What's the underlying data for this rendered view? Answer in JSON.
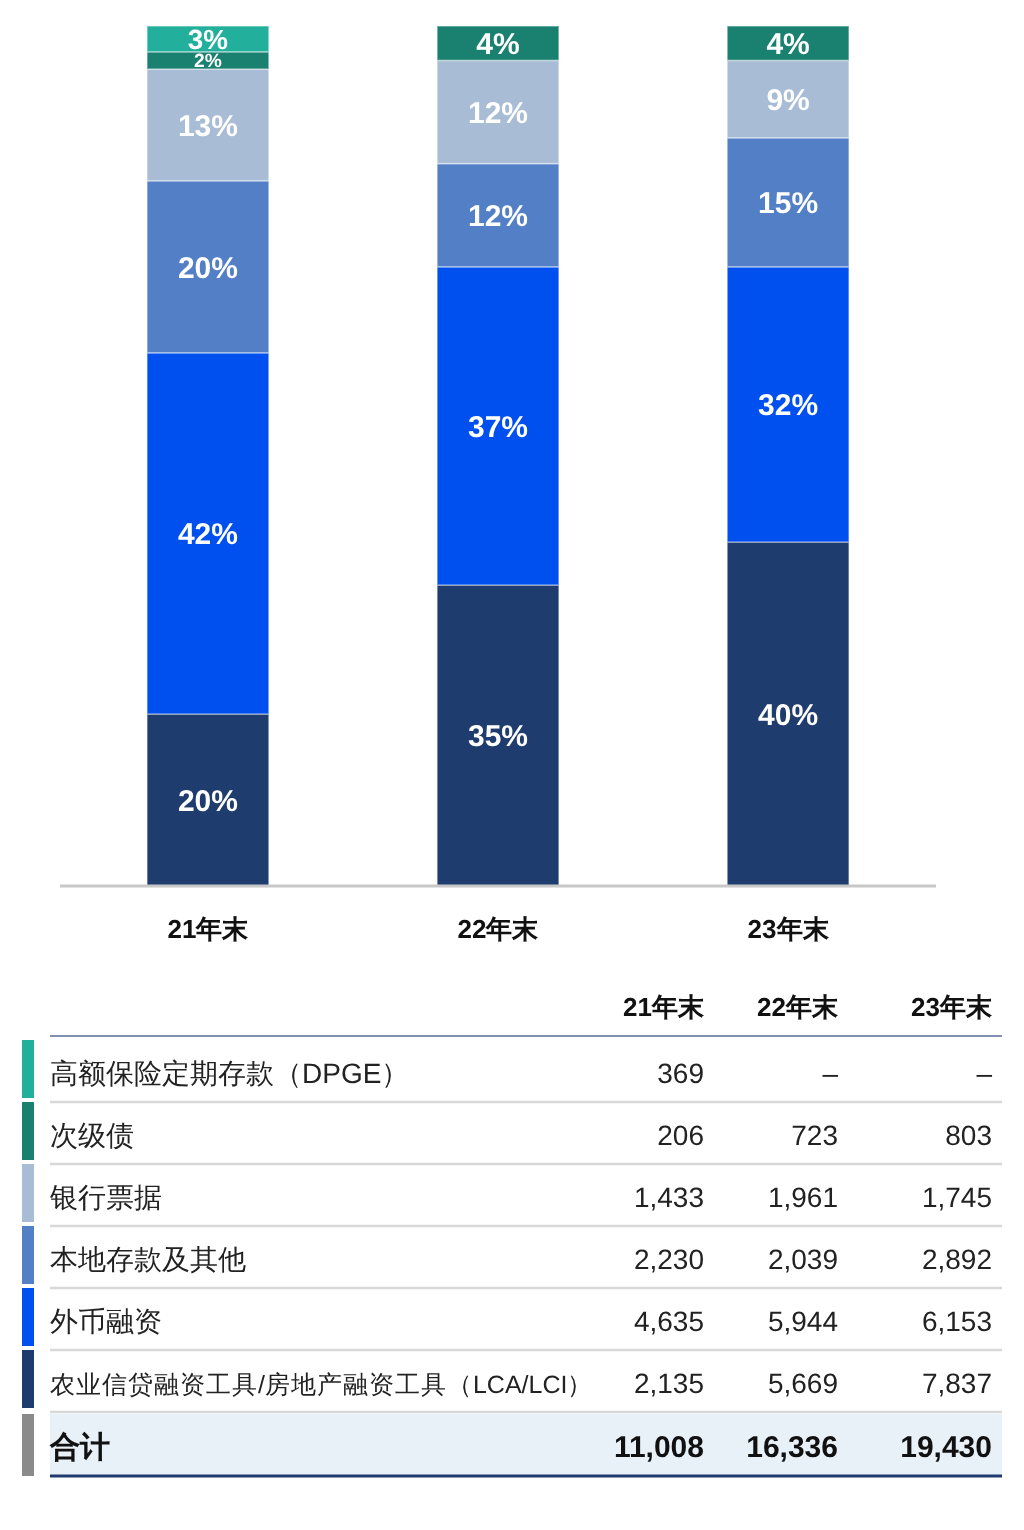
{
  "chart_data": [
    {
      "type": "bar",
      "stacked": true,
      "categories": [
        "21年末",
        "22年末",
        "23年末"
      ],
      "tick_labels": "x",
      "series": [
        {
          "color": "#1f3c6e",
          "values": [
            20,
            35,
            40
          ],
          "value_labels": [
            "20%",
            "35%",
            "40%"
          ]
        },
        {
          "color": "#0050f0",
          "values": [
            42,
            37,
            32
          ],
          "value_labels": [
            "42%",
            "37%",
            "32%"
          ]
        },
        {
          "color": "#537fc6",
          "values": [
            20,
            12,
            15
          ],
          "value_labels": [
            "20%",
            "12%",
            "15%"
          ]
        },
        {
          "color": "#a9bcd6",
          "values": [
            13,
            12,
            9
          ],
          "value_labels": [
            "13%",
            "12%",
            "9%"
          ]
        },
        {
          "color": "#1a8070",
          "values": [
            2,
            4,
            4
          ],
          "value_labels": [
            "2%",
            "4%",
            "4%"
          ]
        },
        {
          "color": "#22b09c",
          "values": [
            3,
            null,
            null
          ],
          "value_labels": [
            "3%",
            null,
            null
          ]
        }
      ]
    },
    {
      "type": "other",
      "categories": [
        "21年末",
        "22年末",
        "23年末"
      ],
      "annotations": [
        "合计"
      ],
      "totals": [
        "11,008",
        "16,336",
        "19,430"
      ],
      "series": [
        {
          "name": "高额保险定期存款（DPGE）",
          "color": "#22b09c",
          "values": [
            369,
            null,
            null
          ],
          "value_labels": [
            "369",
            "–",
            "–"
          ]
        },
        {
          "name": "次级债",
          "color": "#1a8070",
          "values": [
            206,
            723,
            803
          ],
          "value_labels": [
            "206",
            "723",
            "803"
          ]
        },
        {
          "name": "银行票据",
          "color": "#a9bcd6",
          "values": [
            1433,
            1961,
            1745
          ],
          "value_labels": [
            "1,433",
            "1,961",
            "1,745"
          ]
        },
        {
          "name": "本地存款及其他",
          "color": "#537fc6",
          "values": [
            2230,
            2039,
            2892
          ],
          "value_labels": [
            "2,230",
            "2,039",
            "2,892"
          ]
        },
        {
          "name": "外币融资",
          "color": "#0050f0",
          "values": [
            4635,
            5944,
            6153
          ],
          "value_labels": [
            "4,635",
            "5,944",
            "6,153"
          ]
        },
        {
          "name": "农业信贷融资工具/房地产融资工具（LCA/LCI）",
          "color": "#1f3c6e",
          "values": [
            2135,
            5669,
            7837
          ],
          "value_labels": [
            "2,135",
            "5,669",
            "7,837"
          ]
        }
      ]
    }
  ]
}
